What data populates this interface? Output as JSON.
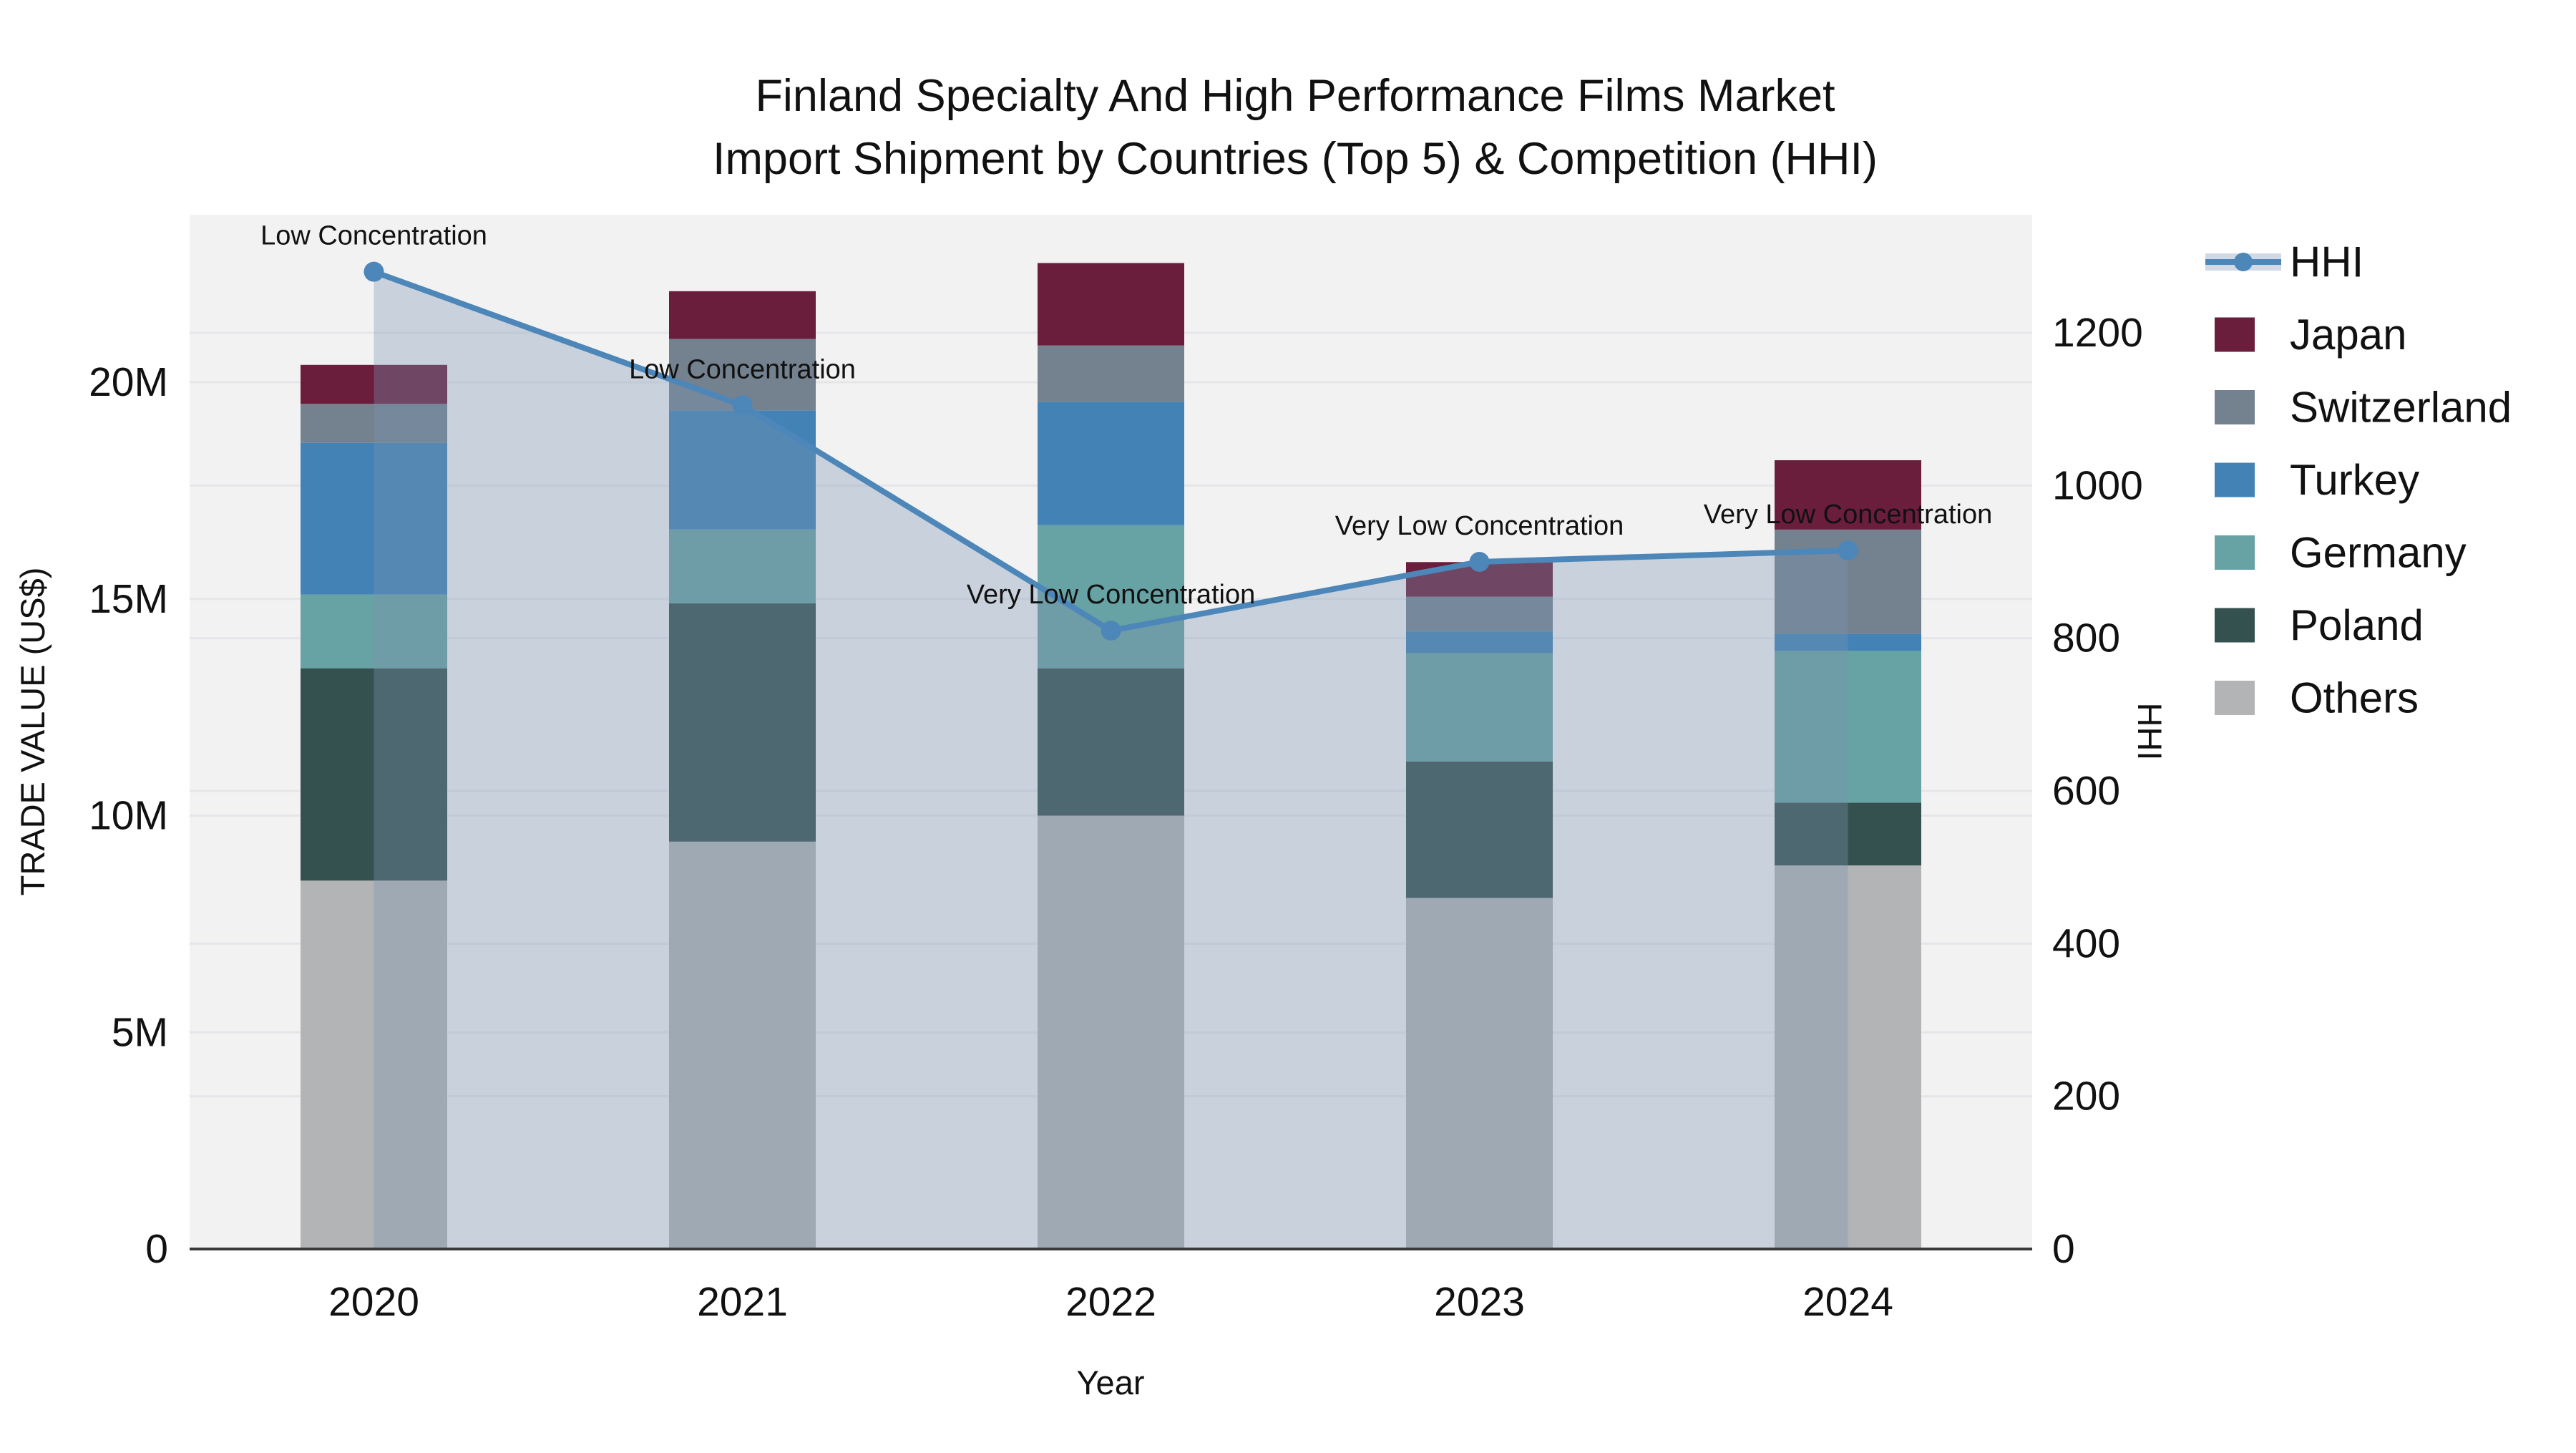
{
  "chart_data": {
    "type": "stacked-bar+line",
    "title_line1": "Finland Specialty And High Performance Films Market",
    "title_line2": "Import Shipment by Countries (Top 5) & Competition (HHI)",
    "x": {
      "label": "Year",
      "categories": [
        "2020",
        "2021",
        "2022",
        "2023",
        "2024"
      ]
    },
    "y_left": {
      "label": "TRADE VALUE (US$)",
      "tick_labels": [
        "0",
        "5M",
        "10M",
        "15M",
        "20M"
      ],
      "tick_values_musd": [
        0,
        5,
        10,
        15,
        20
      ],
      "range_musd": [
        0,
        23.9
      ]
    },
    "y_right": {
      "label": "HHI",
      "tick_labels": [
        "0",
        "200",
        "400",
        "600",
        "800",
        "1000",
        "1200"
      ],
      "tick_values": [
        0,
        200,
        400,
        600,
        800,
        1000,
        1200
      ],
      "range": [
        0,
        1355
      ]
    },
    "series_stack_bottom_to_top": [
      {
        "name": "Others",
        "color": "#b2b4b5",
        "values_musd": [
          8.5,
          9.4,
          10.0,
          8.1,
          8.85
        ]
      },
      {
        "name": "Poland",
        "color": "#35514f",
        "values_musd": [
          4.9,
          5.5,
          3.4,
          3.15,
          1.45
        ]
      },
      {
        "name": "Germany",
        "color": "#67a2a4",
        "values_musd": [
          1.7,
          1.7,
          3.3,
          2.5,
          3.5
        ]
      },
      {
        "name": "Turkey",
        "color": "#4382b5",
        "values_musd": [
          3.5,
          2.75,
          2.85,
          0.5,
          0.4
        ]
      },
      {
        "name": "Switzerland",
        "color": "#74818f",
        "values_musd": [
          0.9,
          1.65,
          1.3,
          0.8,
          2.4
        ]
      },
      {
        "name": "Japan",
        "color": "#6b1d3c",
        "values_musd": [
          0.9,
          1.1,
          1.9,
          0.8,
          1.6
        ]
      }
    ],
    "bar_totals_musd": [
      20.4,
      22.1,
      22.75,
      15.85,
      18.2
    ],
    "hhi": {
      "name": "HHI",
      "line_color": "#4d86b8",
      "area_fill": "rgba(124,148,178,0.35)",
      "values": [
        1280,
        1105,
        810,
        900,
        915
      ],
      "annotations": [
        "Low Concentration",
        "Low Concentration",
        "Very Low Concentration",
        "Very Low Concentration",
        "Very Low Concentration"
      ]
    },
    "legend_order": [
      "HHI",
      "Japan",
      "Switzerland",
      "Turkey",
      "Germany",
      "Poland",
      "Others"
    ],
    "plot_background": "#f2f2f3",
    "gridline_color": "#e6e6ea",
    "axis_line_color": "#3a3a3a"
  }
}
